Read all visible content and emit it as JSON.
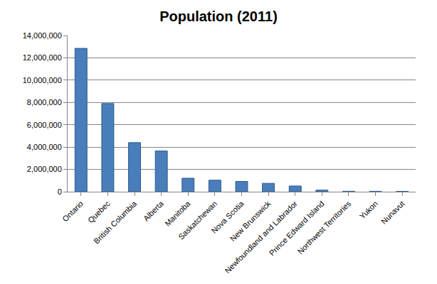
{
  "chart_data": {
    "type": "bar",
    "title": "Population (2011)",
    "categories": [
      "Ontario",
      "Quebec",
      "British Columbia",
      "Alberta",
      "Manitoba",
      "Saskatchewan",
      "Nova Scotia",
      "New Brunswick",
      "Newfoundland and Labrador",
      "Prince Edward Island",
      "Northwest Territories",
      "Yukon",
      "Nunavut"
    ],
    "values": [
      12850000,
      7900000,
      4400000,
      3650000,
      1210000,
      1030000,
      920000,
      750000,
      510000,
      140000,
      40000,
      35000,
      32000
    ],
    "color": "#4a7ebb",
    "ylim": [
      0,
      14000000
    ],
    "yticks": [
      0,
      {
        "value": 2000000,
        "label": "2,000,000"
      },
      {
        "value": 4000000,
        "label": "4,000,000"
      },
      {
        "value": 6000000,
        "label": "6,000,000"
      },
      {
        "value": 8000000,
        "label": "8,000,000"
      },
      {
        "value": 10000000,
        "label": "10,000,000"
      },
      {
        "value": 12000000,
        "label": "12,000,000"
      },
      {
        "value": 14000000,
        "label": "14,000,000"
      }
    ],
    "grid": true
  }
}
